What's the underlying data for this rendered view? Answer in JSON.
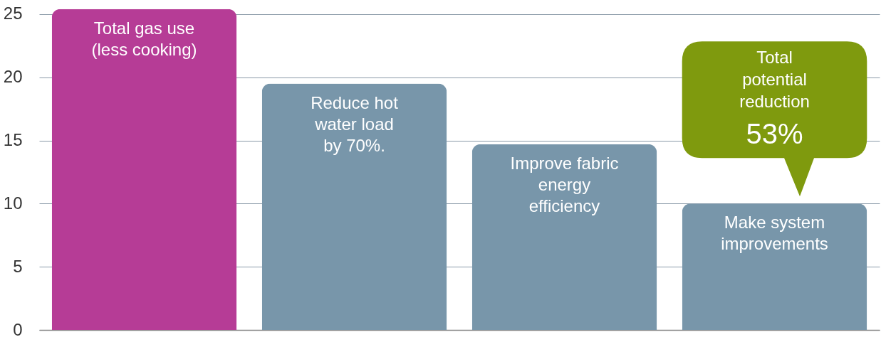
{
  "chart_data": {
    "type": "bar",
    "categories": [
      "Total gas use\n(less cooking)",
      "Reduce hot\nwater load\nby 70%.",
      "Improve fabric\nenergy\nefficiency",
      "Make system\nimprovements"
    ],
    "values": [
      25.4,
      19.5,
      14.7,
      10.0
    ],
    "colors": [
      "#b63c96",
      "#7896aa",
      "#7896aa",
      "#7896aa"
    ],
    "ylim": [
      0,
      25.5
    ],
    "yticks": [
      0,
      5,
      10,
      15,
      20,
      25
    ],
    "grid": "y",
    "tick_labels": "y",
    "annotations": [
      "Total\npotential\nreduction",
      "53%"
    ]
  }
}
